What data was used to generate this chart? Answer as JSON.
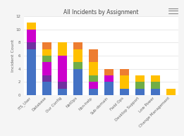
{
  "title": "All Incidents by Assignment",
  "ylabel": "Incident Count",
  "categories": [
    "ITS_User",
    "Database",
    "Our Config",
    "NetOps",
    "Non-help",
    "Sub-domain",
    "Field Ops",
    "Desktop Support",
    "Low Power",
    "Change Management"
  ],
  "series": {
    "Infotjyl": [
      7,
      2,
      1,
      4,
      1,
      2,
      1,
      1,
      1,
      0
    ],
    "Database": [
      1,
      1,
      1,
      0,
      0,
      0,
      0,
      0,
      0,
      0
    ],
    "Hardware": [
      2,
      2,
      4,
      0,
      1,
      1,
      0,
      0,
      0,
      0
    ],
    "Network": [
      0,
      1,
      0,
      1,
      1,
      0,
      0,
      1,
      1,
      0
    ],
    "Service Desk": [
      1,
      1,
      2,
      2,
      2,
      0,
      2,
      1,
      1,
      1
    ],
    "Software": [
      0,
      1,
      0,
      1,
      2,
      1,
      1,
      0,
      0,
      0
    ]
  },
  "colors": {
    "Infotjyl": "#4472C4",
    "Database": "#7030A0",
    "Hardware": "#CC00CC",
    "Network": "#70AD47",
    "Service Desk": "#FFC000",
    "Software": "#ED7D31"
  },
  "ylim": [
    0,
    12
  ],
  "yticks": [
    0,
    2,
    4,
    6,
    8,
    10,
    12
  ],
  "background_color": "#F5F5F5",
  "plot_bg_color": "#FFFFFF",
  "grid_color": "#E0E0E0",
  "title_fontsize": 5.5,
  "axis_fontsize": 4.5,
  "tick_fontsize": 4.0,
  "legend_fontsize": 4.2
}
